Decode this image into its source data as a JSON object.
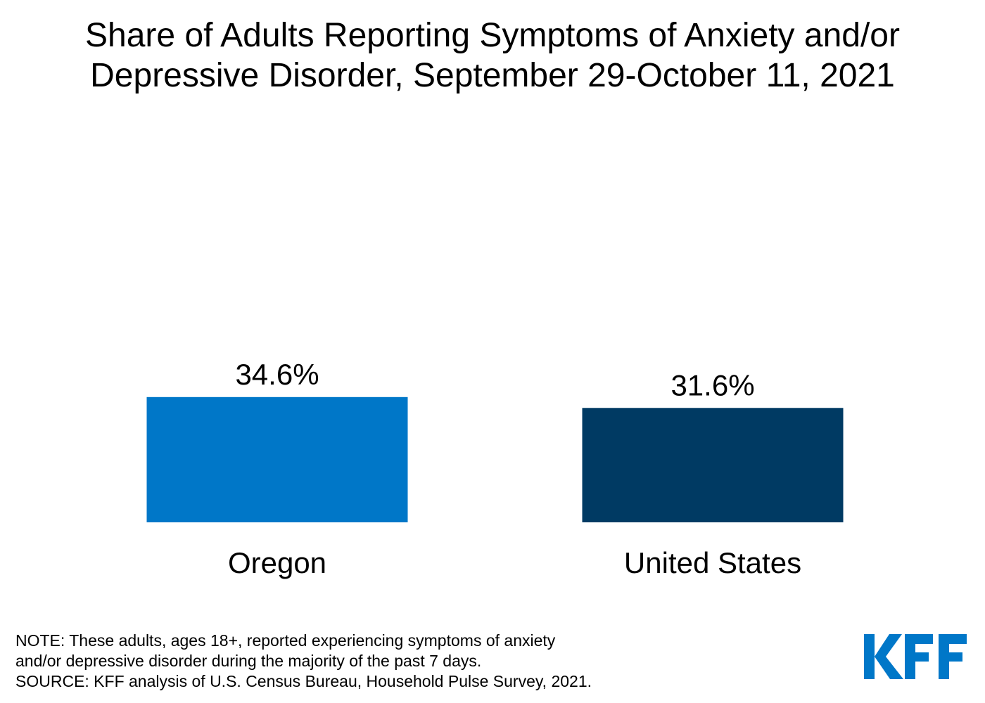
{
  "chart_data": {
    "type": "bar",
    "title": "Share of Adults Reporting Symptoms of Anxiety and/or Depressive Disorder, September 29-October 11, 2021",
    "title_lines": [
      "Share of Adults Reporting Symptoms of Anxiety and/or",
      "Depressive Disorder, September 29-October 11, 2021"
    ],
    "categories": [
      "Oregon",
      "United States"
    ],
    "values": [
      34.6,
      31.6
    ],
    "value_labels": [
      "34.6%",
      "31.6%"
    ],
    "colors": [
      "#0077c8",
      "#003a63"
    ],
    "xlabel": "",
    "ylabel": "",
    "ylim": [
      0,
      100
    ],
    "grid": false,
    "legend": "none"
  },
  "notes": [
    "NOTE: These adults, ages 18+, reported experiencing symptoms of anxiety",
    "and/or depressive disorder during the majority of the past 7 days.",
    "SOURCE: KFF analysis of U.S. Census Bureau, Household Pulse Survey, 2021."
  ],
  "logo": {
    "text": "KFF",
    "color": "#0077c8"
  }
}
